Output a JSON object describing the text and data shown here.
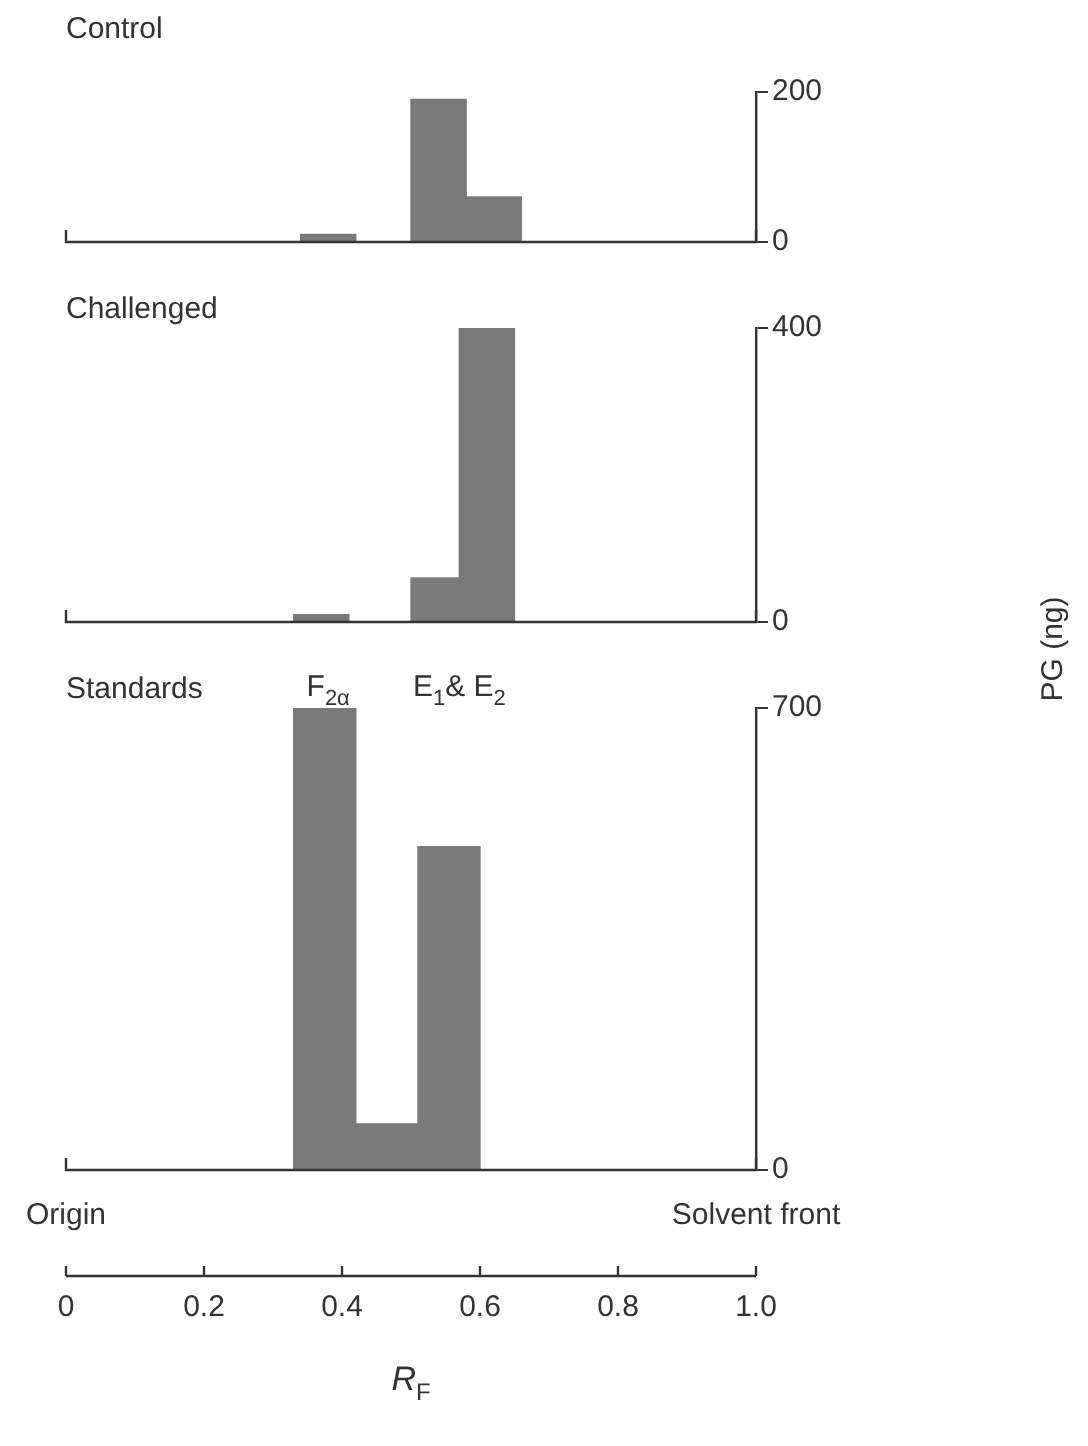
{
  "chart_data": [
    {
      "type": "histogram",
      "title": "Control",
      "bins": [
        0.34,
        0.42,
        0.5,
        0.58,
        0.66
      ],
      "values": [
        10,
        0,
        190,
        60
      ],
      "color": "#7a7a7a",
      "xlim": [
        0,
        1
      ],
      "ylim": [
        0,
        200
      ],
      "yticks": [
        0,
        200
      ],
      "tick_labels": "y",
      "grid": false
    },
    {
      "type": "histogram",
      "title": "Challenged",
      "bins": [
        0.33,
        0.41,
        0.5,
        0.57,
        0.65
      ],
      "values": [
        10,
        0,
        60,
        400
      ],
      "color": "#7a7a7a",
      "xlim": [
        0,
        1
      ],
      "ylim": [
        0,
        400
      ],
      "yticks": [
        0,
        400
      ],
      "tick_labels": "y",
      "grid": false
    },
    {
      "type": "histogram",
      "title": "Standards",
      "xlabel": "R$_{F}$",
      "ylabel": "PG (ng)",
      "bins": [
        0.33,
        0.42,
        0.51,
        0.6
      ],
      "values": [
        700,
        70,
        490
      ],
      "color": "#7a7a7a",
      "xlim": [
        0,
        1
      ],
      "xticks": [
        0,
        0.2,
        0.4,
        0.6,
        0.8,
        {
          "value": 1,
          "label": "1.0"
        }
      ],
      "ylim": [
        0,
        700
      ],
      "yticks": [
        0,
        700
      ],
      "grid": false,
      "annotations": [
        {
          "text": "F$_{2α}$",
          "x": 0.38,
          "y": 700
        },
        "E$_{1}$& E$_{2}$",
        "Origin",
        "Solvent front"
      ]
    }
  ]
}
